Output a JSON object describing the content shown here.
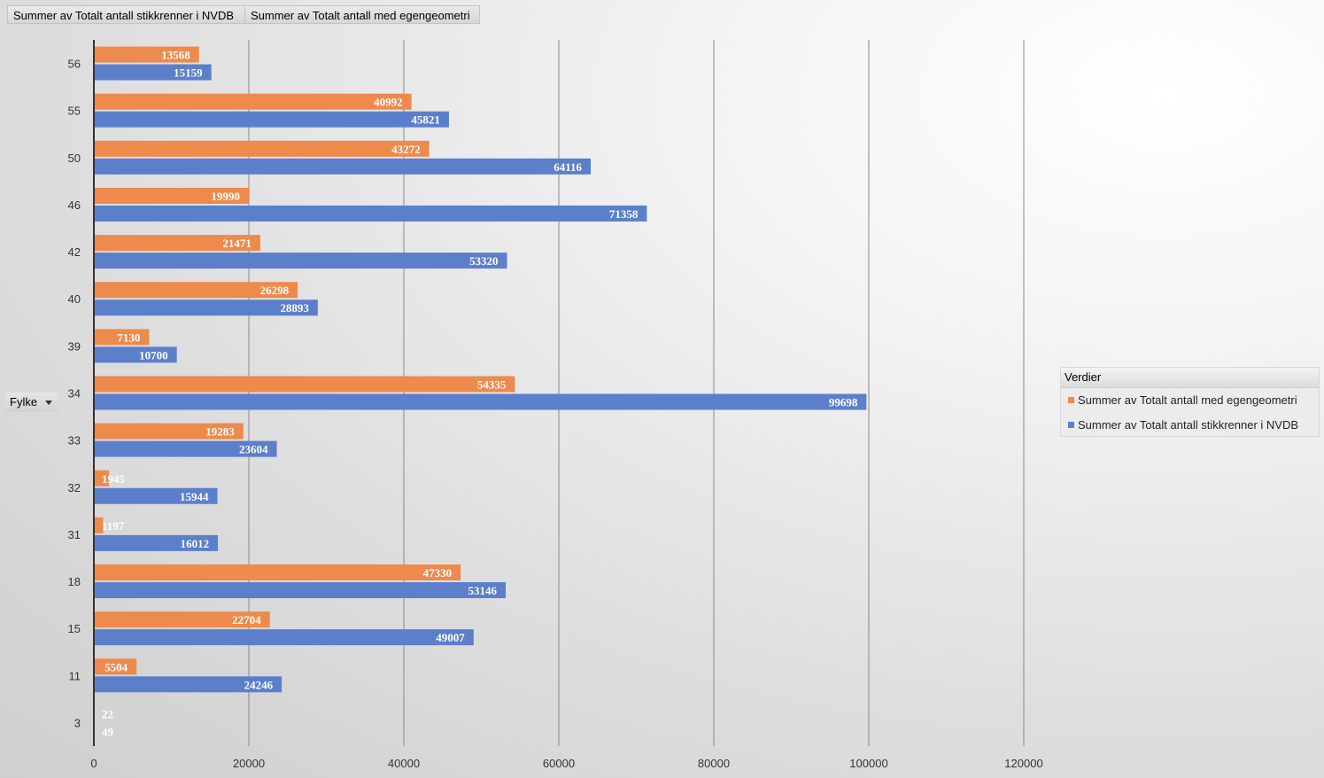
{
  "field_buttons": [
    "Summer av Totalt antall stikkrenner  i NVDB",
    "Summer av Totalt antall med egengeometri"
  ],
  "axis_field": {
    "label": "Fylke"
  },
  "legend": {
    "title": "Verdier",
    "items": [
      "Summer av Totalt antall med egengeometri",
      "Summer av Totalt antall stikkrenner i NVDB"
    ]
  },
  "colors": {
    "orange": "#ED8A4C",
    "blue": "#5B7FCB"
  },
  "chart_data": {
    "type": "bar",
    "orientation": "horizontal",
    "categories": [
      "56",
      "55",
      "50",
      "46",
      "42",
      "40",
      "39",
      "34",
      "33",
      "32",
      "31",
      "18",
      "15",
      "11",
      "3"
    ],
    "series": [
      {
        "name": "Summer av Totalt antall med egengeometri",
        "values": [
          13568,
          40992,
          43272,
          19990,
          21471,
          26298,
          7130,
          54335,
          19283,
          1945,
          1197,
          47330,
          22704,
          5504,
          22
        ]
      },
      {
        "name": "Summer av Totalt antall stikkrenner i NVDB",
        "values": [
          15159,
          45821,
          64116,
          71358,
          53320,
          28893,
          10700,
          99698,
          23604,
          15944,
          16012,
          53146,
          49007,
          24246,
          49
        ]
      }
    ],
    "xlim": [
      0,
      120000
    ],
    "xticks": [
      0,
      20000,
      40000,
      60000,
      80000,
      100000,
      120000
    ],
    "ylabel": "Fylke",
    "grid": "vertical",
    "legend_position": "right"
  }
}
